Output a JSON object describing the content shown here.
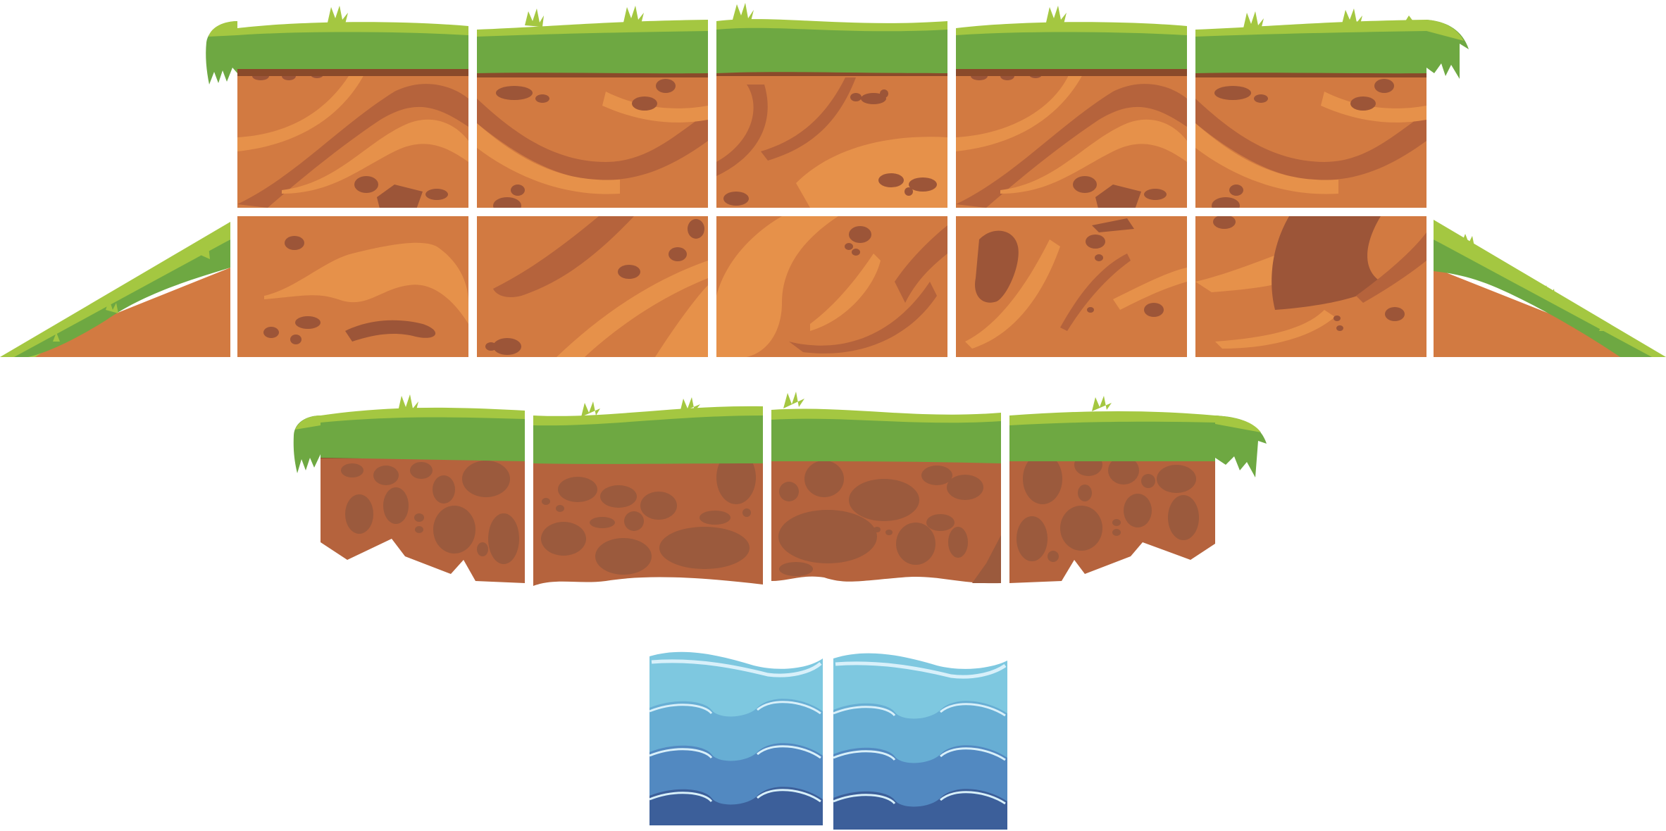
{
  "tileset": {
    "palette": {
      "background": "#ffffff",
      "grass_light": "#a4c741",
      "grass": "#6ea842",
      "grass_dark": "#5a8f33",
      "dirt_edge": "#8a4a2a",
      "dirt": "#d27a41",
      "dirt_dark": "#b5633c",
      "dirt_light": "#e6914a",
      "dirt_stone": "#9c5538",
      "rock_dirt": "#b5633d",
      "rock_stone": "#9b5a3d",
      "water_top": "#7ec8e0",
      "water_band2": "#67aed4",
      "water_band3": "#5289c1",
      "water_band4": "#3c5f9a",
      "water_foam": "#d8f0fa"
    },
    "groups": [
      {
        "name": "grass-dirt-top-row",
        "tiles": 5,
        "style": "grass-top-dirt",
        "overhang": "both-ends"
      },
      {
        "name": "dirt-middle-row",
        "tiles": 5,
        "style": "dirt-fill"
      },
      {
        "name": "grass-slopes",
        "tiles": 2,
        "style": "slope",
        "directions": [
          "up-left",
          "up-right"
        ]
      },
      {
        "name": "floating-rock-platform",
        "tiles": 4,
        "style": "grass-top-rock",
        "overhang": "both-ends"
      },
      {
        "name": "water-tiles",
        "tiles": 2,
        "style": "water"
      }
    ]
  }
}
